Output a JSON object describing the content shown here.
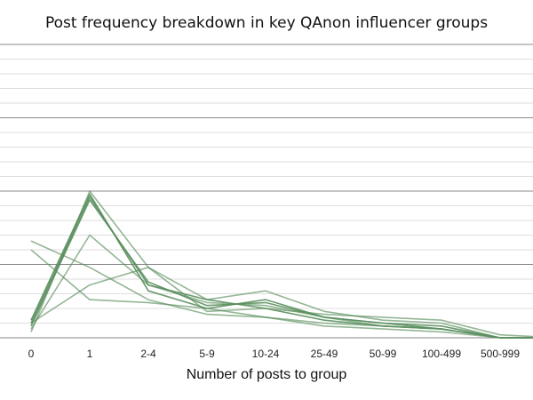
{
  "chart_data": {
    "type": "line",
    "title": "Post frequency breakdown in key QAnon influencer groups",
    "xlabel": "Number of posts to group",
    "ylabel": "",
    "categories": [
      "0",
      "1",
      "2-4",
      "5-9",
      "10-24",
      "25-49",
      "50-99",
      "100-499",
      "500-999",
      ""
    ],
    "ylim": [
      0,
      1
    ],
    "grid": {
      "major": true,
      "minor": true
    },
    "legend": "none",
    "line_color": "#5a8f5e",
    "series": [
      {
        "values": [
          0.05,
          0.48,
          0.18,
          0.13,
          0.1,
          0.06,
          0.04,
          0.03,
          0.0,
          0.0
        ]
      },
      {
        "values": [
          0.04,
          0.47,
          0.19,
          0.11,
          0.12,
          0.07,
          0.05,
          0.03,
          0.0,
          0.0
        ]
      },
      {
        "values": [
          0.06,
          0.49,
          0.16,
          0.1,
          0.13,
          0.07,
          0.05,
          0.04,
          0.0,
          0.0
        ]
      },
      {
        "values": [
          0.03,
          0.35,
          0.18,
          0.12,
          0.11,
          0.07,
          0.04,
          0.03,
          0.0,
          0.0
        ]
      },
      {
        "values": [
          0.02,
          0.5,
          0.24,
          0.13,
          0.16,
          0.09,
          0.06,
          0.05,
          0.0,
          0.0
        ]
      },
      {
        "values": [
          0.33,
          0.24,
          0.13,
          0.08,
          0.07,
          0.05,
          0.04,
          0.03,
          0.0,
          0.0
        ]
      },
      {
        "values": [
          0.3,
          0.13,
          0.12,
          0.1,
          0.07,
          0.04,
          0.03,
          0.02,
          0.0,
          0.0
        ]
      },
      {
        "values": [
          0.05,
          0.18,
          0.24,
          0.09,
          0.1,
          0.08,
          0.07,
          0.06,
          0.01,
          0.0
        ]
      }
    ]
  }
}
